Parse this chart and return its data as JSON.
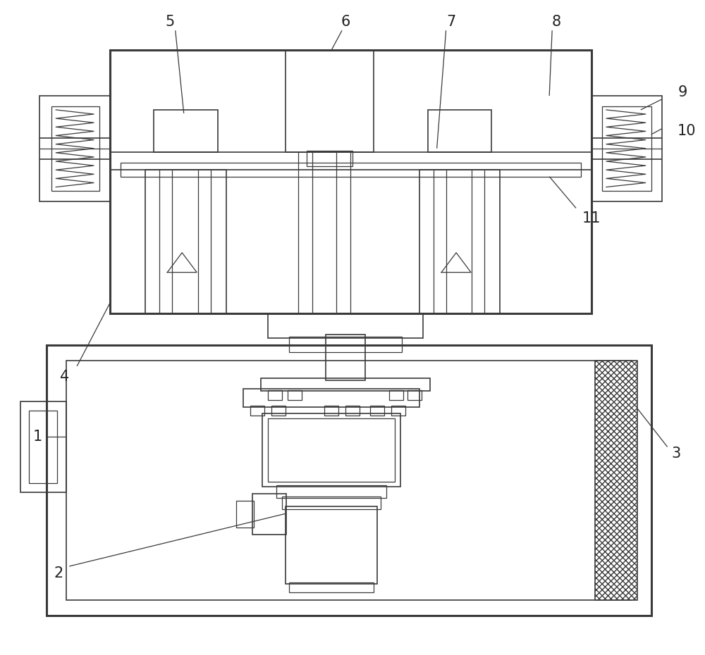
{
  "bg_color": "#ffffff",
  "lc": "#3a3a3a",
  "lw": 1.4,
  "lw_thin": 0.9,
  "lw_thick": 2.2,
  "lw_med": 1.2
}
